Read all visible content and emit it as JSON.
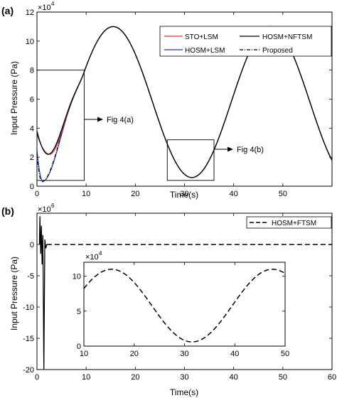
{
  "panels": [
    {
      "label": "(a)",
      "chart_data": {
        "type": "line",
        "xlabel": "Time(s)",
        "ylabel": "Input Pressure (Pa)",
        "xlim": [
          0,
          60
        ],
        "ylim": [
          0,
          120000
        ],
        "y_exponent_label": "×10",
        "y_exponent": "4",
        "xticks": [
          "0",
          "10",
          "20",
          "30",
          "40",
          "50"
        ],
        "yticks": [
          "0",
          "2",
          "4",
          "6",
          "8",
          "10",
          "12"
        ],
        "xtick_values": [
          0,
          10,
          20,
          30,
          40,
          50
        ],
        "ytick_values": [
          0,
          20000,
          40000,
          60000,
          80000,
          100000,
          120000
        ],
        "legend_position": "top-right",
        "sine_model": {
          "offset": 58000,
          "amplitude": 52000,
          "period": 32,
          "peak_time": 15.5
        },
        "series": [
          {
            "name": "STO+LSM",
            "color": "#e03030",
            "dash": "",
            "start_y": 36000,
            "dip_time": 2.6,
            "dip_y": 22000
          },
          {
            "name": "HOSM+LSM",
            "color": "#2233cc",
            "dash": "",
            "start_y": 25000,
            "dip_time": 1.2,
            "dip_y": 3500
          },
          {
            "name": "HOSM+NFTSM",
            "color": "#000000",
            "dash": "",
            "start_y": 38000,
            "dip_time": 2.3,
            "dip_y": 22000
          },
          {
            "name": "Proposed",
            "color": "#000000",
            "dash": "5 2 1 2",
            "start_y": 22000,
            "dip_time": 1.0,
            "dip_y": 3000
          }
        ],
        "zoom_boxes": [
          {
            "name": "Fig 4(a)",
            "x": [
              0,
              9.6
            ],
            "y": [
              4000,
              80000
            ]
          },
          {
            "name": "Fig 4(b)",
            "x": [
              26.5,
              36
            ],
            "y": [
              4000,
              32000
            ]
          }
        ],
        "annotations": [
          "Fig 4(a)",
          "Fig 4(b)"
        ]
      }
    },
    {
      "label": "(b)",
      "chart_data": {
        "type": "line",
        "xlabel": "Time(s)",
        "ylabel": "Input Pressure (Pa)",
        "xlim": [
          0,
          60
        ],
        "ylim": [
          -20000000,
          5000000
        ],
        "y_exponent_label": "×10",
        "y_exponent": "6",
        "xticks": [
          "0",
          "10",
          "20",
          "30",
          "40",
          "50",
          "60"
        ],
        "yticks": [
          "-20",
          "-15",
          "-10",
          "-5",
          "0"
        ],
        "xtick_values": [
          0,
          10,
          20,
          30,
          40,
          50,
          60
        ],
        "ytick_values": [
          -20000000,
          -15000000,
          -10000000,
          -5000000,
          0
        ],
        "legend_position": "top-right",
        "series": [
          {
            "name": "HOSM+FTSM",
            "color": "#000000",
            "dash": "7 4",
            "spikes": [
              {
                "x": 0.6,
                "y": 4500000
              },
              {
                "x": 0.75,
                "y": -1500000
              },
              {
                "x": 0.9,
                "y": 3000000
              },
              {
                "x": 1.05,
                "y": -3200000
              },
              {
                "x": 1.2,
                "y": 1500000
              },
              {
                "x": 1.4,
                "y": -20000000
              },
              {
                "x": 1.6,
                "y": 800000
              },
              {
                "x": 1.8,
                "y": -600000
              },
              {
                "x": 2.0,
                "y": 0
              }
            ]
          }
        ],
        "inset": {
          "xlim": [
            10,
            50
          ],
          "ylim": [
            0,
            120000
          ],
          "y_exponent_label": "×10",
          "y_exponent": "4",
          "xticks": [
            "10",
            "20",
            "30",
            "40",
            "50"
          ],
          "yticks": [
            "0",
            "5",
            "10"
          ],
          "xtick_values": [
            10,
            20,
            30,
            40,
            50
          ],
          "ytick_values": [
            0,
            50000,
            100000
          ],
          "sine_model": {
            "offset": 58000,
            "amplitude": 52000,
            "period": 32,
            "peak_time": 15.5
          }
        }
      }
    }
  ]
}
